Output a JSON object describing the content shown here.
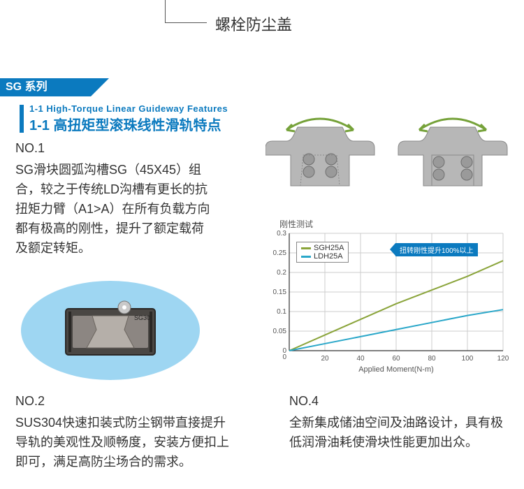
{
  "top_label": "螺栓防尘盖",
  "series_banner": "SG 系列",
  "subtitle_en": "1-1 High-Torque Linear Guideway Features",
  "subtitle_cn": "1-1 高扭矩型滚珠线性滑轨特点",
  "no1": {
    "label": "NO.1",
    "body": "SG滑块圆弧沟槽SG（45X45）组合，较之于传统LD沟槽有更长的抗扭矩力臂（A1>A）在所有负载方向都有极高的刚性，提升了额定载荷及额定转矩。"
  },
  "block_label": "SG30",
  "no2": {
    "label": "NO.2",
    "body": "SUS304快速扣装式防尘钢带直接提升导轨的美观性及顺畅度，安装方便扣上即可，满足高防尘场合的需求。"
  },
  "no4": {
    "label": "NO.4",
    "body": "全新集成储油空间及油路设计，具有极低润滑油耗使滑块性能更加出众。"
  },
  "diagrams": {
    "rail_profile_color": "#b7b7b7",
    "ball_color": "#9a9a9a",
    "arrow_color": "#76a23a",
    "block_body_color": "#4a4744",
    "block_inner_color": "#8c8682",
    "ellipse_bg": "#9ed6f2"
  },
  "chart": {
    "title": "刚性测试",
    "type": "line",
    "xlabel": "Applied Moment(N-m)",
    "ylim": [
      0,
      0.3
    ],
    "yticks": [
      0,
      0.05,
      0.1,
      0.15,
      0.2,
      0.25,
      0.3
    ],
    "xlim": [
      0,
      120
    ],
    "xticks": [
      0,
      20,
      40,
      60,
      80,
      100,
      120
    ],
    "grid_color": "#cccccc",
    "axis_color": "#333333",
    "background_color": "#ffffff",
    "label_fontsize": 10,
    "series": [
      {
        "name": "SGH25A",
        "color": "#8aa43a",
        "points": [
          [
            0,
            0
          ],
          [
            20,
            0.04
          ],
          [
            40,
            0.08
          ],
          [
            60,
            0.12
          ],
          [
            80,
            0.155
          ],
          [
            100,
            0.19
          ],
          [
            120,
            0.23
          ]
        ]
      },
      {
        "name": "LDH25A",
        "color": "#2aa7c9",
        "points": [
          [
            0,
            0
          ],
          [
            20,
            0.018
          ],
          [
            40,
            0.036
          ],
          [
            60,
            0.054
          ],
          [
            80,
            0.072
          ],
          [
            100,
            0.09
          ],
          [
            120,
            0.105
          ]
        ]
      }
    ],
    "badge_text": "扭转刚性提升100%以上",
    "badge_bg": "#0b7abf",
    "badge_fg": "#ffffff"
  }
}
